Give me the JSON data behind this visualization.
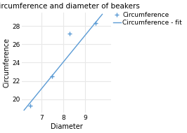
{
  "title": "Circumference and diameter of beakers",
  "xlabel": "Diameter",
  "ylabel": "Circumference",
  "scatter_x": [
    6.5,
    7.5,
    8.3,
    9.5
  ],
  "scatter_y": [
    19.3,
    22.5,
    27.2,
    28.3
  ],
  "fit_x": [
    6.2,
    9.8
  ],
  "fit_y": [
    18.8,
    29.3
  ],
  "scatter_color": "#5b9bd5",
  "line_color": "#5b9bd5",
  "marker": "+",
  "legend_scatter": "Circumference",
  "legend_line": "Circumference - fit",
  "xlim": [
    6.1,
    10.2
  ],
  "ylim": [
    18.5,
    29.5
  ],
  "xticks": [
    7,
    8,
    9
  ],
  "yticks": [
    20,
    22,
    24,
    26,
    28
  ],
  "grid_color": "#e8e8e8",
  "bg_color": "#ffffff",
  "title_fontsize": 7.5,
  "label_fontsize": 7,
  "tick_fontsize": 6.5,
  "legend_fontsize": 6.5
}
